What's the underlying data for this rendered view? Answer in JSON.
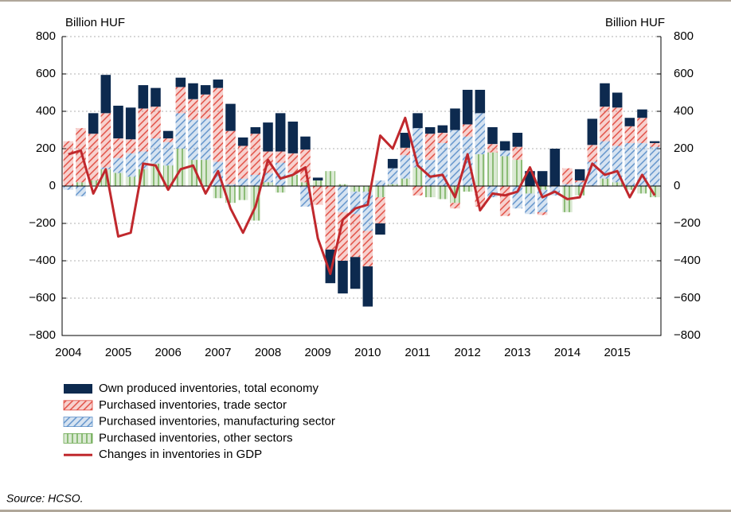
{
  "chart_data": {
    "type": "bar",
    "y_label": "Billion HUF",
    "y2_label": "Billion HUF",
    "source": "Source: HCSO.",
    "categories": [
      "2004",
      null,
      null,
      null,
      "2005",
      null,
      null,
      null,
      "2006",
      null,
      null,
      null,
      "2007",
      null,
      null,
      null,
      "2008",
      null,
      null,
      null,
      "2009",
      null,
      null,
      null,
      "2010",
      null,
      null,
      null,
      "2011",
      null,
      null,
      null,
      "2012",
      null,
      null,
      null,
      "2013",
      null,
      null,
      null,
      "2014",
      null,
      null,
      null,
      "2015",
      null,
      null,
      null
    ],
    "ylim": [
      -800,
      800
    ],
    "yticks": [
      {
        "value": -800,
        "label": "−800"
      },
      {
        "value": -600,
        "label": "−600"
      },
      {
        "value": -400,
        "label": "−400"
      },
      {
        "value": -200,
        "label": "−200"
      },
      0,
      200,
      400,
      600,
      800
    ],
    "y2lim": [
      -800,
      800
    ],
    "y2ticks": [
      {
        "value": -800,
        "label": "−800"
      },
      {
        "value": -600,
        "label": "−600"
      },
      {
        "value": -400,
        "label": "−400"
      },
      {
        "value": -200,
        "label": "−200"
      },
      0,
      200,
      400,
      600,
      800
    ],
    "grid": true,
    "series": [
      {
        "name": "Own produced inventories, total economy",
        "color": "#0d2a4f",
        "pattern": "solid",
        "values": [
          0,
          0,
          110,
          205,
          175,
          170,
          125,
          100,
          40,
          50,
          85,
          50,
          45,
          145,
          45,
          35,
          155,
          205,
          170,
          70,
          15,
          -180,
          -175,
          -170,
          -215,
          -60,
          50,
          80,
          80,
          35,
          40,
          115,
          185,
          125,
          90,
          50,
          75,
          80,
          80,
          200,
          0,
          60,
          140,
          125,
          80,
          45,
          45,
          10
        ]
      },
      {
        "name": "Purchased inventories, trade sector",
        "color": "#e0473c",
        "pattern": "diagonal",
        "values": [
          240,
          290,
          250,
          290,
          105,
          75,
          230,
          170,
          20,
          140,
          110,
          130,
          395,
          285,
          175,
          220,
          115,
          60,
          105,
          175,
          -100,
          -340,
          -260,
          -230,
          -190,
          -140,
          0,
          40,
          -50,
          140,
          55,
          -30,
          65,
          -110,
          45,
          -160,
          70,
          0,
          -15,
          0,
          85,
          10,
          90,
          185,
          205,
          90,
          135,
          20
        ]
      },
      {
        "name": "Purchased inventories, manufacturing sector",
        "color": "#5b8fc9",
        "pattern": "diagonal",
        "values": [
          -20,
          -55,
          0,
          10,
          80,
          125,
          95,
          135,
          125,
          190,
          215,
          220,
          130,
          10,
          40,
          60,
          50,
          125,
          10,
          -110,
          0,
          0,
          -140,
          -120,
          -210,
          30,
          85,
          125,
          210,
          140,
          230,
          300,
          265,
          220,
          -60,
          30,
          -120,
          -110,
          -120,
          -50,
          10,
          20,
          130,
          200,
          195,
          230,
          230,
          210
        ]
      },
      {
        "name": "Purchased inventories, other sectors",
        "color": "#6aa84f",
        "pattern": "vertical",
        "values": [
          0,
          20,
          30,
          90,
          70,
          50,
          90,
          120,
          110,
          200,
          140,
          140,
          -65,
          -90,
          -75,
          -185,
          20,
          -35,
          60,
          20,
          30,
          80,
          10,
          -30,
          -30,
          -60,
          10,
          40,
          100,
          -60,
          -70,
          -90,
          -30,
          170,
          180,
          160,
          140,
          -40,
          -20,
          0,
          -140,
          -50,
          0,
          40,
          20,
          -20,
          -40,
          -60
        ]
      },
      {
        "name": "Changes in inventories in GDP",
        "color": "#c0282d",
        "type": "line",
        "values": [
          170,
          190,
          -40,
          90,
          -270,
          -250,
          120,
          110,
          -20,
          90,
          110,
          -40,
          80,
          -120,
          -250,
          -110,
          140,
          40,
          60,
          100,
          -280,
          -470,
          -180,
          -120,
          -100,
          270,
          200,
          365,
          110,
          50,
          60,
          -60,
          170,
          -130,
          -40,
          -50,
          -30,
          100,
          -60,
          -30,
          -70,
          -60,
          120,
          60,
          80,
          -60,
          60,
          -50
        ]
      }
    ]
  }
}
